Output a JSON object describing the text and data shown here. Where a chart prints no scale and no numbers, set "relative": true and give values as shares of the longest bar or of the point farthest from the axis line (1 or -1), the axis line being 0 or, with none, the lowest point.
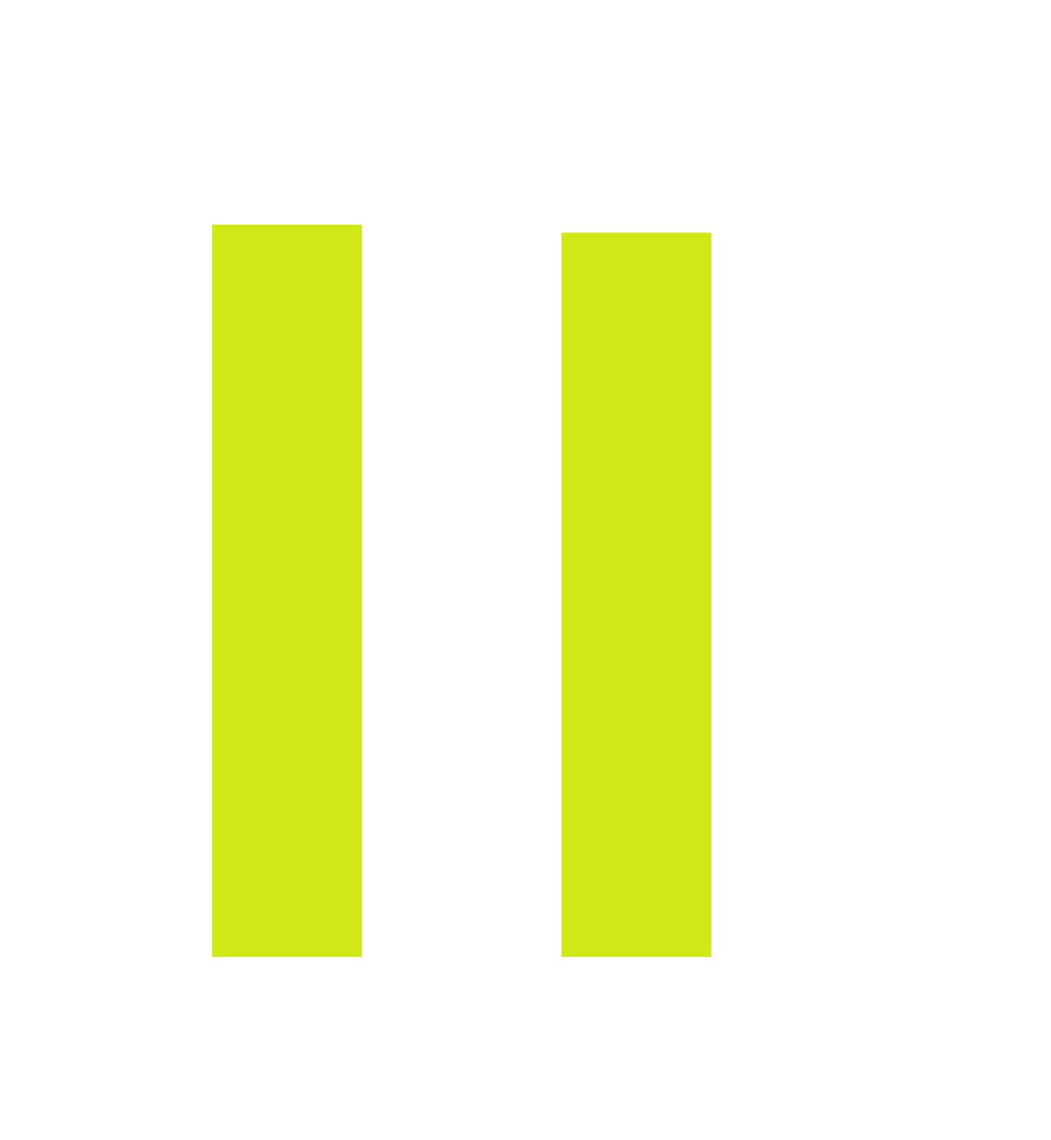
{
  "chart_data": {
    "type": "bar",
    "relative": true,
    "categories": [
      null,
      null
    ],
    "values": [
      1,
      0.989
    ],
    "color": "#d0e816"
  }
}
